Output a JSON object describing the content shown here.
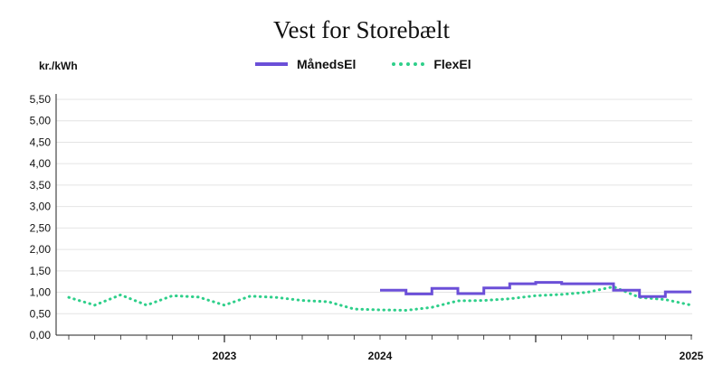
{
  "chart_data": {
    "type": "line",
    "title": "Vest for Storebælt",
    "ylabel": "kr./kWh",
    "ylim": [
      0,
      5.5
    ],
    "grid": true,
    "legend_position": "top-center",
    "y_ticks": [
      "0,00",
      "0,50",
      "1,00",
      "1,50",
      "2,00",
      "2,50",
      "3,00",
      "3,50",
      "4,00",
      "4,50",
      "5,00",
      "5,50"
    ],
    "x_year_labels": [
      {
        "label": "2023",
        "month": 6
      },
      {
        "label": "2024",
        "month": 12
      },
      {
        "label": "2025",
        "month": 24
      }
    ],
    "x_month_ticks": 25,
    "series": [
      {
        "name": "MånedsEl",
        "style": "step",
        "color": "#6b4fd8",
        "points": [
          {
            "from": 12,
            "to": 13,
            "value": 1.05
          },
          {
            "from": 13,
            "to": 14,
            "value": 0.96
          },
          {
            "from": 14,
            "to": 15,
            "value": 1.09
          },
          {
            "from": 15,
            "to": 16,
            "value": 0.97
          },
          {
            "from": 16,
            "to": 17,
            "value": 1.1
          },
          {
            "from": 17,
            "to": 18,
            "value": 1.2
          },
          {
            "from": 18,
            "to": 19,
            "value": 1.23
          },
          {
            "from": 19,
            "to": 20,
            "value": 1.2
          },
          {
            "from": 20,
            "to": 21,
            "value": 1.2
          },
          {
            "from": 21,
            "to": 22,
            "value": 1.05
          },
          {
            "from": 22,
            "to": 23,
            "value": 0.9
          },
          {
            "from": 23,
            "to": 24,
            "value": 1.01
          }
        ]
      },
      {
        "name": "FlexEl",
        "style": "dotted",
        "color": "#2ecf8a",
        "x": [
          0,
          1,
          2,
          3,
          4,
          5,
          6,
          7,
          8,
          9,
          10,
          11,
          12,
          13,
          14,
          15,
          16,
          17,
          18,
          19,
          20,
          21,
          22,
          23,
          24
        ],
        "y": [
          0.88,
          0.7,
          0.94,
          0.7,
          0.92,
          0.89,
          0.7,
          0.91,
          0.88,
          0.81,
          0.78,
          0.61,
          0.59,
          0.58,
          0.65,
          0.8,
          0.81,
          0.85,
          0.92,
          0.95,
          1.0,
          1.13,
          0.88,
          0.83,
          0.7
        ]
      }
    ]
  }
}
